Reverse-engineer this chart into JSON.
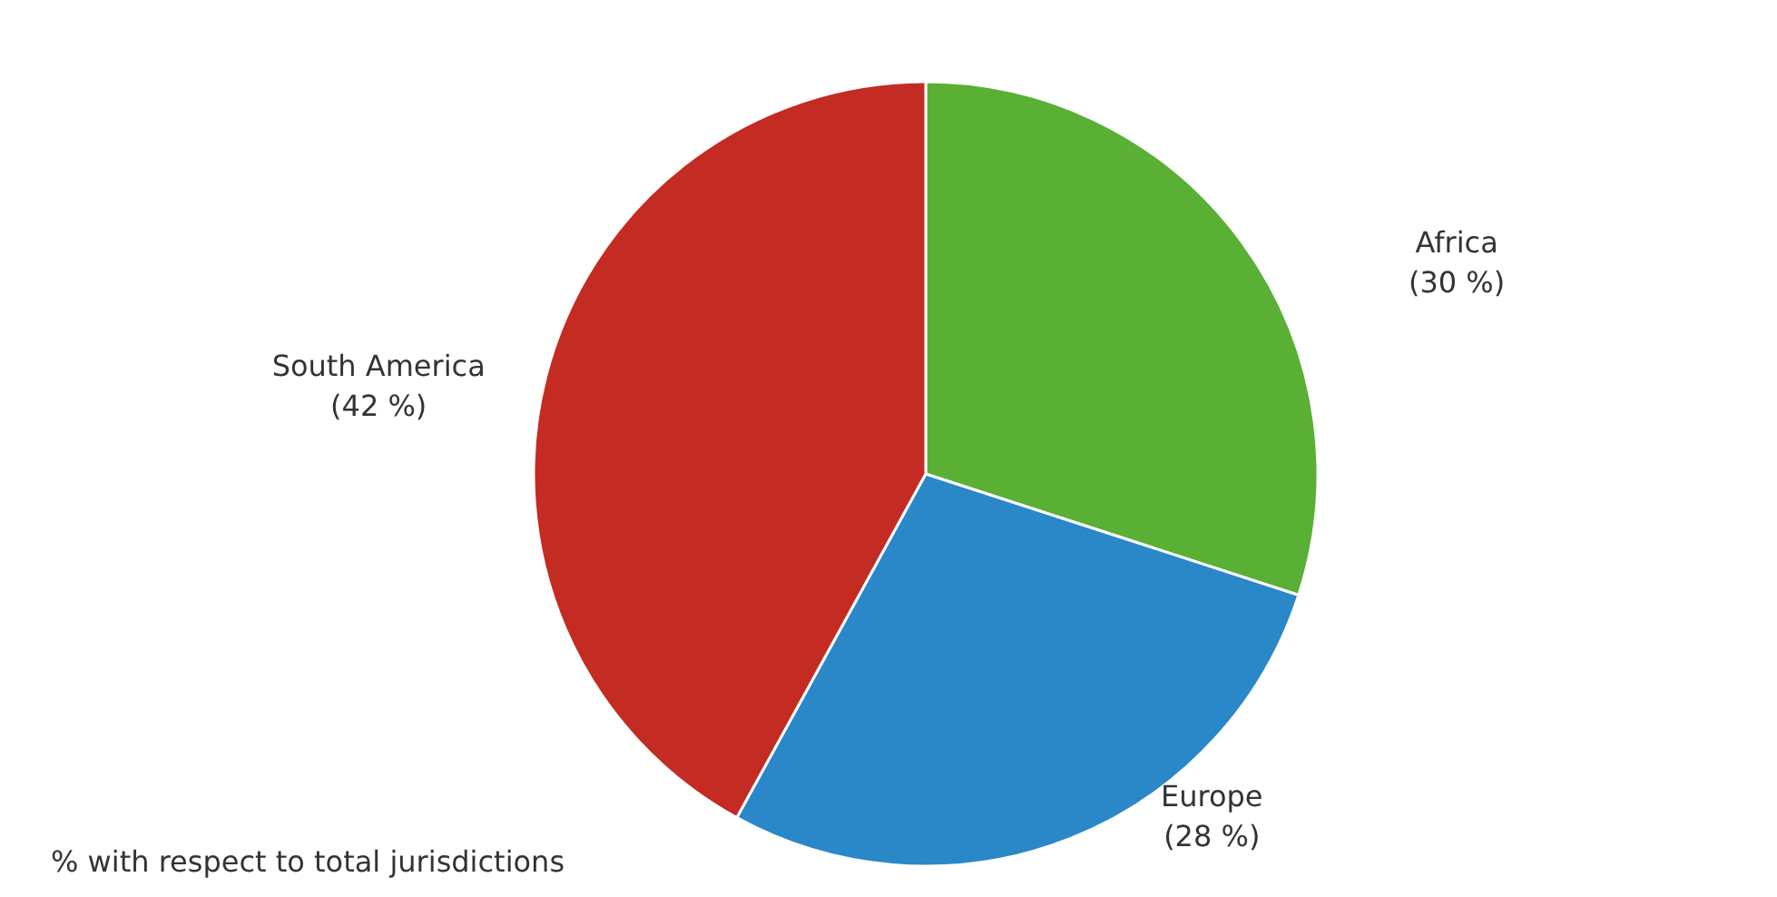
{
  "chart_data": {
    "type": "pie",
    "categories": [
      "Africa",
      "Europe",
      "South America"
    ],
    "values": [
      30,
      28,
      42
    ],
    "colors": [
      "#5aaf35",
      "#2a87c8",
      "#c42b22"
    ],
    "value_labels": [
      "(30 %)",
      "(28 %)",
      "(42 %)"
    ],
    "annotations": [
      "% with respect to total jurisdictions"
    ]
  }
}
